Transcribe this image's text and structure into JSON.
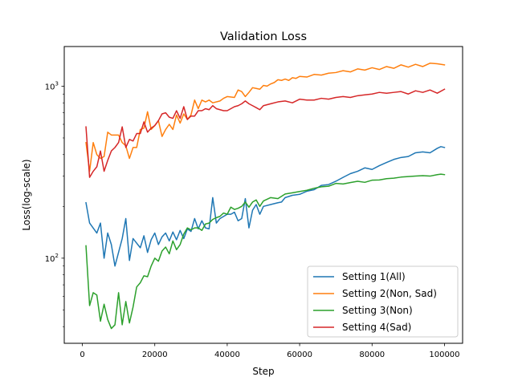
{
  "chart_data": {
    "type": "line",
    "title": "Validation Loss",
    "xlabel": "Step",
    "ylabel": "Loss(log-scale)",
    "xlim": [
      -5000,
      105000
    ],
    "ylim": [
      32,
      1700
    ],
    "yscale": "log",
    "x_ticks": [
      0,
      20000,
      40000,
      60000,
      80000,
      100000
    ],
    "x_tick_labels": [
      "0",
      "20000",
      "40000",
      "60000",
      "80000",
      "100000"
    ],
    "y_major_ticks": [
      100,
      1000
    ],
    "y_major_tick_labels": [
      "10^2",
      "10^3"
    ],
    "y_minor_ticks": [
      40,
      50,
      60,
      70,
      80,
      90,
      200,
      300,
      400,
      500,
      600,
      700,
      800,
      900
    ],
    "grid": false,
    "legend_position": "lower-right",
    "series": [
      {
        "name": "Setting 1(All)",
        "color": "#1f77b4",
        "points": [
          [
            1000,
            210
          ],
          [
            2000,
            160
          ],
          [
            4000,
            140
          ],
          [
            5000,
            160
          ],
          [
            6000,
            100
          ],
          [
            7000,
            140
          ],
          [
            8000,
            120
          ],
          [
            9000,
            90
          ],
          [
            11000,
            130
          ],
          [
            12000,
            170
          ],
          [
            13000,
            97
          ],
          [
            14000,
            130
          ],
          [
            16000,
            115
          ],
          [
            17000,
            135
          ],
          [
            18000,
            108
          ],
          [
            19000,
            128
          ],
          [
            20000,
            140
          ],
          [
            21000,
            120
          ],
          [
            22000,
            133
          ],
          [
            23000,
            140
          ],
          [
            24000,
            126
          ],
          [
            25000,
            142
          ],
          [
            26000,
            128
          ],
          [
            27000,
            145
          ],
          [
            28000,
            130
          ],
          [
            29000,
            148
          ],
          [
            30000,
            143
          ],
          [
            31000,
            170
          ],
          [
            32000,
            148
          ],
          [
            33000,
            165
          ],
          [
            34000,
            150
          ],
          [
            35000,
            148
          ],
          [
            36000,
            225
          ],
          [
            37000,
            160
          ],
          [
            38000,
            170
          ],
          [
            40000,
            180
          ],
          [
            41000,
            180
          ],
          [
            42000,
            185
          ],
          [
            43000,
            165
          ],
          [
            44000,
            170
          ],
          [
            45000,
            222
          ],
          [
            46000,
            150
          ],
          [
            47000,
            190
          ],
          [
            48000,
            205
          ],
          [
            49000,
            180
          ],
          [
            50000,
            200
          ],
          [
            52000,
            205
          ],
          [
            54000,
            210
          ],
          [
            55000,
            212
          ],
          [
            56000,
            225
          ],
          [
            58000,
            232
          ],
          [
            60000,
            235
          ],
          [
            62000,
            245
          ],
          [
            64000,
            250
          ],
          [
            66000,
            265
          ],
          [
            68000,
            268
          ],
          [
            70000,
            280
          ],
          [
            72000,
            295
          ],
          [
            74000,
            310
          ],
          [
            76000,
            320
          ],
          [
            78000,
            335
          ],
          [
            80000,
            328
          ],
          [
            82000,
            345
          ],
          [
            84000,
            360
          ],
          [
            86000,
            375
          ],
          [
            88000,
            385
          ],
          [
            90000,
            390
          ],
          [
            92000,
            410
          ],
          [
            94000,
            415
          ],
          [
            96000,
            410
          ],
          [
            98000,
            435
          ],
          [
            99000,
            445
          ],
          [
            100000,
            440
          ]
        ]
      },
      {
        "name": "Setting 2(Non, Sad)",
        "color": "#ff7f0e",
        "points": [
          [
            1000,
            470
          ],
          [
            2000,
            320
          ],
          [
            3000,
            470
          ],
          [
            4000,
            400
          ],
          [
            5000,
            380
          ],
          [
            6000,
            390
          ],
          [
            7000,
            540
          ],
          [
            8000,
            520
          ],
          [
            10000,
            520
          ],
          [
            11000,
            470
          ],
          [
            12000,
            450
          ],
          [
            13000,
            380
          ],
          [
            14000,
            440
          ],
          [
            15000,
            440
          ],
          [
            16000,
            560
          ],
          [
            17000,
            570
          ],
          [
            18000,
            710
          ],
          [
            19000,
            560
          ],
          [
            20000,
            590
          ],
          [
            21000,
            630
          ],
          [
            22000,
            510
          ],
          [
            23000,
            560
          ],
          [
            24000,
            600
          ],
          [
            25000,
            560
          ],
          [
            26000,
            680
          ],
          [
            27000,
            610
          ],
          [
            28000,
            690
          ],
          [
            29000,
            640
          ],
          [
            30000,
            680
          ],
          [
            31000,
            830
          ],
          [
            32000,
            740
          ],
          [
            33000,
            830
          ],
          [
            34000,
            810
          ],
          [
            35000,
            830
          ],
          [
            36000,
            800
          ],
          [
            38000,
            820
          ],
          [
            39000,
            850
          ],
          [
            40000,
            870
          ],
          [
            42000,
            860
          ],
          [
            43000,
            950
          ],
          [
            44000,
            930
          ],
          [
            45000,
            870
          ],
          [
            46000,
            920
          ],
          [
            47000,
            980
          ],
          [
            48000,
            970
          ],
          [
            49000,
            960
          ],
          [
            50000,
            1010
          ],
          [
            51000,
            1000
          ],
          [
            52000,
            1030
          ],
          [
            53000,
            1050
          ],
          [
            54000,
            1090
          ],
          [
            55000,
            1080
          ],
          [
            56000,
            1100
          ],
          [
            57000,
            1080
          ],
          [
            58000,
            1120
          ],
          [
            59000,
            1110
          ],
          [
            60000,
            1140
          ],
          [
            62000,
            1130
          ],
          [
            64000,
            1170
          ],
          [
            66000,
            1160
          ],
          [
            68000,
            1190
          ],
          [
            70000,
            1200
          ],
          [
            72000,
            1230
          ],
          [
            74000,
            1210
          ],
          [
            76000,
            1260
          ],
          [
            78000,
            1240
          ],
          [
            80000,
            1280
          ],
          [
            82000,
            1250
          ],
          [
            84000,
            1300
          ],
          [
            86000,
            1270
          ],
          [
            88000,
            1330
          ],
          [
            90000,
            1290
          ],
          [
            92000,
            1340
          ],
          [
            94000,
            1300
          ],
          [
            96000,
            1360
          ],
          [
            98000,
            1350
          ],
          [
            100000,
            1330
          ]
        ]
      },
      {
        "name": "Setting 3(Non)",
        "color": "#2ca02c",
        "points": [
          [
            1000,
            118
          ],
          [
            2000,
            53
          ],
          [
            3000,
            63
          ],
          [
            4000,
            61
          ],
          [
            5000,
            43
          ],
          [
            6000,
            54
          ],
          [
            7000,
            44
          ],
          [
            8000,
            39
          ],
          [
            9000,
            41
          ],
          [
            10000,
            63
          ],
          [
            11000,
            41
          ],
          [
            12000,
            56
          ],
          [
            13000,
            42
          ],
          [
            14000,
            52
          ],
          [
            15000,
            68
          ],
          [
            16000,
            72
          ],
          [
            17000,
            79
          ],
          [
            18000,
            78
          ],
          [
            19000,
            90
          ],
          [
            20000,
            100
          ],
          [
            21000,
            96
          ],
          [
            22000,
            110
          ],
          [
            23000,
            116
          ],
          [
            24000,
            106
          ],
          [
            25000,
            126
          ],
          [
            26000,
            112
          ],
          [
            27000,
            120
          ],
          [
            28000,
            138
          ],
          [
            29000,
            150
          ],
          [
            30000,
            146
          ],
          [
            31000,
            150
          ],
          [
            32000,
            150
          ],
          [
            33000,
            145
          ],
          [
            34000,
            158
          ],
          [
            35000,
            160
          ],
          [
            36000,
            168
          ],
          [
            37000,
            172
          ],
          [
            38000,
            175
          ],
          [
            39000,
            183
          ],
          [
            40000,
            180
          ],
          [
            41000,
            198
          ],
          [
            42000,
            192
          ],
          [
            43000,
            195
          ],
          [
            44000,
            200
          ],
          [
            45000,
            212
          ],
          [
            46000,
            198
          ],
          [
            47000,
            212
          ],
          [
            48000,
            218
          ],
          [
            49000,
            200
          ],
          [
            50000,
            215
          ],
          [
            52000,
            225
          ],
          [
            54000,
            222
          ],
          [
            56000,
            236
          ],
          [
            58000,
            240
          ],
          [
            60000,
            244
          ],
          [
            62000,
            248
          ],
          [
            64000,
            255
          ],
          [
            66000,
            260
          ],
          [
            68000,
            262
          ],
          [
            70000,
            272
          ],
          [
            72000,
            270
          ],
          [
            74000,
            275
          ],
          [
            76000,
            280
          ],
          [
            78000,
            276
          ],
          [
            80000,
            284
          ],
          [
            82000,
            285
          ],
          [
            84000,
            290
          ],
          [
            86000,
            292
          ],
          [
            88000,
            296
          ],
          [
            90000,
            298
          ],
          [
            92000,
            300
          ],
          [
            94000,
            302
          ],
          [
            96000,
            300
          ],
          [
            98000,
            306
          ],
          [
            99000,
            308
          ],
          [
            100000,
            306
          ]
        ]
      },
      {
        "name": "Setting 4(Sad)",
        "color": "#d62728",
        "points": [
          [
            1000,
            580
          ],
          [
            2000,
            295
          ],
          [
            3000,
            320
          ],
          [
            4000,
            340
          ],
          [
            5000,
            420
          ],
          [
            6000,
            320
          ],
          [
            7000,
            370
          ],
          [
            8000,
            420
          ],
          [
            9000,
            440
          ],
          [
            10000,
            470
          ],
          [
            11000,
            580
          ],
          [
            12000,
            440
          ],
          [
            13000,
            490
          ],
          [
            14000,
            480
          ],
          [
            15000,
            530
          ],
          [
            16000,
            530
          ],
          [
            17000,
            620
          ],
          [
            18000,
            540
          ],
          [
            19000,
            570
          ],
          [
            20000,
            590
          ],
          [
            21000,
            630
          ],
          [
            22000,
            690
          ],
          [
            23000,
            700
          ],
          [
            24000,
            660
          ],
          [
            25000,
            650
          ],
          [
            26000,
            720
          ],
          [
            27000,
            650
          ],
          [
            28000,
            760
          ],
          [
            29000,
            640
          ],
          [
            30000,
            670
          ],
          [
            31000,
            670
          ],
          [
            32000,
            720
          ],
          [
            33000,
            720
          ],
          [
            34000,
            740
          ],
          [
            35000,
            730
          ],
          [
            36000,
            770
          ],
          [
            37000,
            740
          ],
          [
            38000,
            730
          ],
          [
            39000,
            720
          ],
          [
            40000,
            720
          ],
          [
            42000,
            760
          ],
          [
            43000,
            770
          ],
          [
            44000,
            790
          ],
          [
            45000,
            820
          ],
          [
            46000,
            790
          ],
          [
            47000,
            770
          ],
          [
            48000,
            750
          ],
          [
            49000,
            730
          ],
          [
            50000,
            770
          ],
          [
            52000,
            790
          ],
          [
            54000,
            810
          ],
          [
            56000,
            820
          ],
          [
            58000,
            800
          ],
          [
            60000,
            840
          ],
          [
            62000,
            830
          ],
          [
            64000,
            830
          ],
          [
            66000,
            850
          ],
          [
            68000,
            840
          ],
          [
            70000,
            860
          ],
          [
            72000,
            870
          ],
          [
            74000,
            860
          ],
          [
            76000,
            880
          ],
          [
            78000,
            890
          ],
          [
            80000,
            900
          ],
          [
            82000,
            920
          ],
          [
            84000,
            910
          ],
          [
            86000,
            920
          ],
          [
            88000,
            930
          ],
          [
            90000,
            900
          ],
          [
            92000,
            940
          ],
          [
            94000,
            920
          ],
          [
            96000,
            950
          ],
          [
            98000,
            910
          ],
          [
            100000,
            960
          ]
        ]
      }
    ]
  }
}
